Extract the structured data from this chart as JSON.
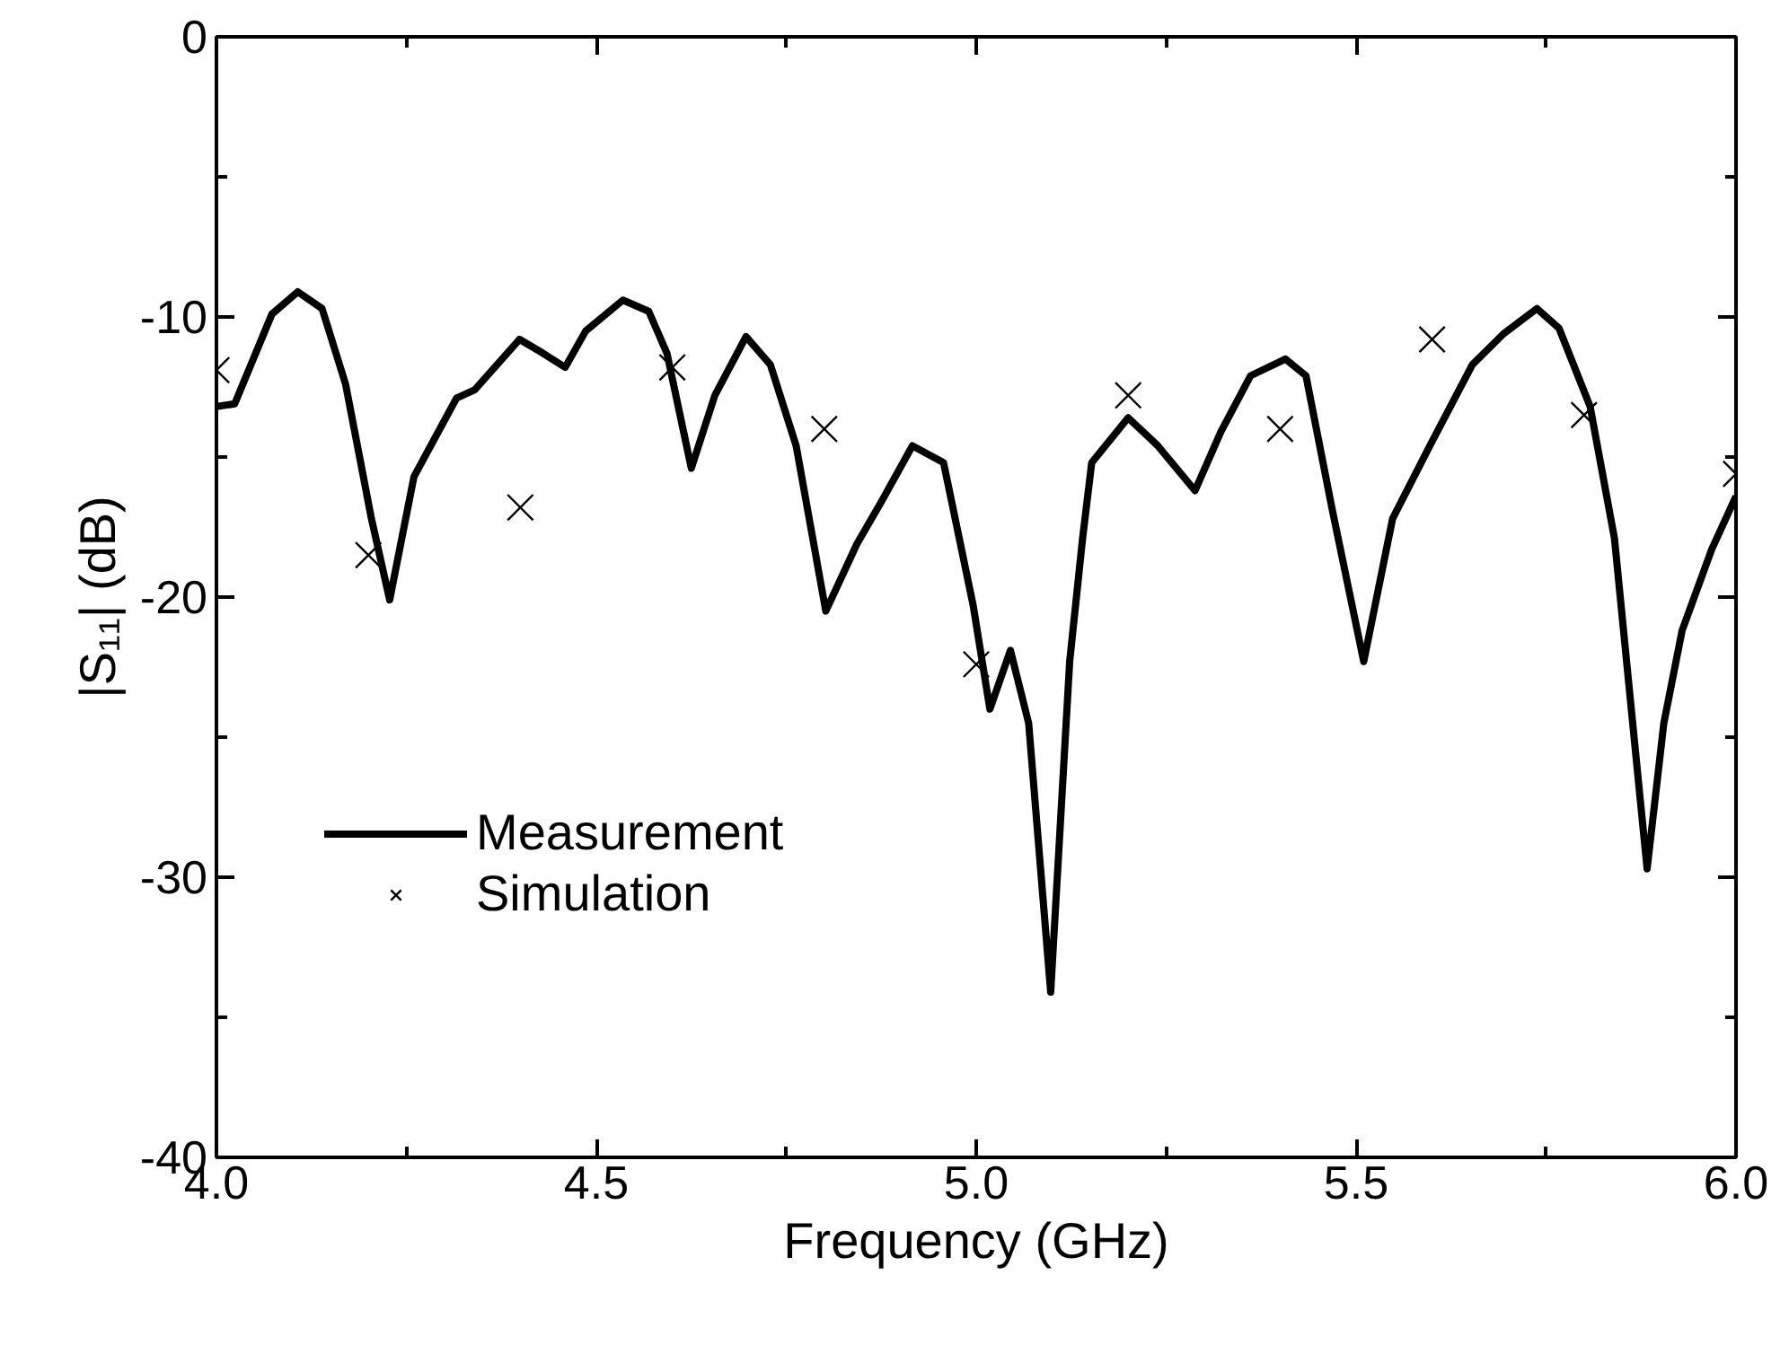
{
  "chart_data": {
    "type": "line",
    "xlabel": "Frequency (GHz)",
    "ylabel": "|S₁₁| (dB)",
    "xlim": [
      4.0,
      6.0
    ],
    "xticks": [
      {
        "value": 4.0,
        "label": "4.0"
      },
      {
        "value": 4.5,
        "label": "4.5"
      },
      {
        "value": 5.0,
        "label": "5.0"
      },
      {
        "value": 5.5,
        "label": "5.5"
      },
      {
        "value": 6.0,
        "label": "6.0"
      }
    ],
    "ylim": [
      -40,
      0
    ],
    "yticks": [
      -40,
      -30,
      -20,
      -10,
      0
    ],
    "grid": false,
    "legend": "bottom left",
    "series": [
      {
        "name": "Measurement",
        "color": "#000000",
        "line_style": "solid",
        "x": [
          4.0,
          4.024,
          4.073,
          4.107,
          4.139,
          4.17,
          4.204,
          4.228,
          4.26,
          4.316,
          4.34,
          4.399,
          4.43,
          4.459,
          4.486,
          4.535,
          4.569,
          4.593,
          4.625,
          4.656,
          4.697,
          4.729,
          4.763,
          4.802,
          4.843,
          4.875,
          4.916,
          4.957,
          4.996,
          5.018,
          5.045,
          5.069,
          5.098,
          5.123,
          5.14,
          5.152,
          5.2,
          5.239,
          5.288,
          5.322,
          5.361,
          5.407,
          5.434,
          5.468,
          5.51,
          5.548,
          5.597,
          5.653,
          5.694,
          5.738,
          5.767,
          5.808,
          5.84,
          5.864,
          5.883,
          5.905,
          5.929,
          5.968,
          6.0
        ],
        "values": [
          -13.2,
          -13.1,
          -9.9,
          -9.1,
          -9.7,
          -12.4,
          -17.2,
          -20.1,
          -15.7,
          -12.9,
          -12.6,
          -10.8,
          -11.3,
          -11.8,
          -10.5,
          -9.4,
          -9.8,
          -11.3,
          -15.4,
          -12.8,
          -10.7,
          -11.7,
          -14.6,
          -20.5,
          -18.1,
          -16.6,
          -14.6,
          -15.2,
          -20.3,
          -24.0,
          -21.9,
          -24.5,
          -34.1,
          -22.3,
          -17.9,
          -15.2,
          -13.6,
          -14.6,
          -16.2,
          -14.1,
          -12.1,
          -11.5,
          -12.1,
          -16.8,
          -22.3,
          -17.2,
          -14.6,
          -11.7,
          -10.6,
          -9.7,
          -10.4,
          -13.2,
          -17.9,
          -24.5,
          -29.7,
          -24.5,
          -21.2,
          -18.3,
          -16.4
        ]
      },
      {
        "name": "Simulation",
        "type": "scatter",
        "color": "#000000",
        "marker": "cross",
        "x": [
          4.0,
          4.2,
          4.4,
          4.6,
          4.8,
          5.0,
          5.2,
          5.4,
          5.6,
          5.8,
          6.0
        ],
        "values": [
          -11.9,
          -18.5,
          -16.8,
          -11.8,
          -14.0,
          -22.4,
          -12.8,
          -14.0,
          -10.8,
          -13.5,
          -15.6
        ]
      }
    ]
  }
}
